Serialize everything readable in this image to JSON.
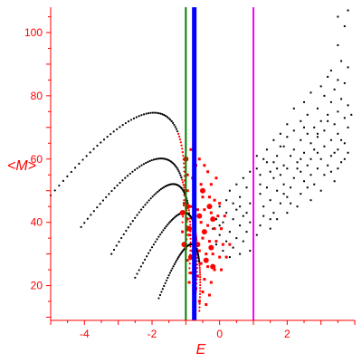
{
  "chart_data": {
    "type": "scatter",
    "title": "",
    "xlabel": "E",
    "ylabel": "<M>",
    "xlim": [
      -5.0,
      4.0
    ],
    "ylim": [
      9.0,
      108.0
    ],
    "x_ticks": [
      -4,
      -2,
      0,
      2
    ],
    "y_ticks": [
      20,
      40,
      60,
      80,
      100
    ],
    "grid": false,
    "legend": "none",
    "colors": {
      "axes": "#ff0000",
      "dotted_curves": "#000000",
      "black_points": "#000000",
      "red_points": "#ff0000",
      "green_line": "#008000",
      "blue_line": "#0000ff",
      "magenta_line": "#ff00ff"
    },
    "vertical_lines": [
      {
        "x": -1.0,
        "color": "green",
        "weight": "thin"
      },
      {
        "x": -0.75,
        "color": "blue",
        "weight": "thick"
      },
      {
        "x": 1.0,
        "color": "magenta",
        "weight": "thin"
      }
    ],
    "dotted_curves": [
      {
        "start": [
          -5.0,
          48.5
        ],
        "peak": [
          -1.8,
          74.5
        ],
        "end": [
          -1.1,
          40.0
        ]
      },
      {
        "start": [
          -4.1,
          38.5
        ],
        "peak": [
          -1.6,
          60.0
        ],
        "end": [
          -1.0,
          30.0
        ]
      },
      {
        "start": [
          -3.2,
          30.0
        ],
        "peak": [
          -1.3,
          52.0
        ],
        "end": [
          -0.9,
          24.0
        ]
      },
      {
        "start": [
          -2.5,
          22.5
        ],
        "peak": [
          -1.0,
          43.0
        ],
        "end": [
          -0.7,
          18.0
        ]
      },
      {
        "start": [
          -1.8,
          16.0
        ],
        "peak": [
          -0.8,
          33.0
        ],
        "end": [
          -0.6,
          12.0
        ]
      }
    ],
    "red_points": [
      [
        -0.85,
        63
      ],
      [
        -0.6,
        60
      ],
      [
        -0.7,
        58
      ],
      [
        -0.45,
        58
      ],
      [
        -0.35,
        56
      ],
      [
        -0.95,
        55
      ],
      [
        -0.8,
        54
      ],
      [
        -0.55,
        52
      ],
      [
        -0.25,
        52
      ],
      [
        -0.1,
        54
      ],
      [
        -0.95,
        50
      ],
      [
        -0.75,
        49
      ],
      [
        -0.5,
        48
      ],
      [
        -0.3,
        48
      ],
      [
        -0.15,
        47
      ],
      [
        0.0,
        46
      ],
      [
        -1.05,
        46
      ],
      [
        -0.85,
        45
      ],
      [
        -0.65,
        44
      ],
      [
        -0.45,
        44
      ],
      [
        -0.25,
        43
      ],
      [
        -0.05,
        42
      ],
      [
        0.15,
        42
      ],
      [
        -0.95,
        41
      ],
      [
        -0.75,
        40
      ],
      [
        -0.55,
        40
      ],
      [
        -0.35,
        39
      ],
      [
        -0.15,
        38
      ],
      [
        0.05,
        38
      ],
      [
        -1.1,
        37
      ],
      [
        -0.9,
        36
      ],
      [
        -0.7,
        35
      ],
      [
        -0.5,
        35
      ],
      [
        -0.3,
        34
      ],
      [
        -0.1,
        34
      ],
      [
        0.1,
        33
      ],
      [
        0.3,
        33
      ],
      [
        -1.0,
        32
      ],
      [
        -0.8,
        31
      ],
      [
        -0.6,
        31
      ],
      [
        -0.4,
        30
      ],
      [
        -0.2,
        30
      ],
      [
        0.0,
        29
      ],
      [
        0.2,
        29
      ],
      [
        -0.95,
        28
      ],
      [
        -0.75,
        27
      ],
      [
        -0.55,
        27
      ],
      [
        -0.35,
        26
      ],
      [
        -0.15,
        25
      ],
      [
        0.05,
        25
      ],
      [
        -0.85,
        24
      ],
      [
        -0.65,
        23
      ],
      [
        -0.45,
        22
      ],
      [
        -0.25,
        21
      ],
      [
        -0.7,
        19
      ],
      [
        -0.5,
        18
      ],
      [
        -0.3,
        17
      ],
      [
        -0.9,
        21
      ],
      [
        -0.6,
        15
      ],
      [
        -0.4,
        14
      ]
    ],
    "red_points_large": [
      [
        -1.0,
        60
      ],
      [
        -0.5,
        50
      ],
      [
        -0.95,
        45
      ],
      [
        -0.3,
        45
      ],
      [
        -1.1,
        43
      ],
      [
        -0.6,
        42
      ],
      [
        -0.2,
        41
      ],
      [
        -0.9,
        38
      ],
      [
        -0.45,
        37
      ],
      [
        -1.05,
        33
      ],
      [
        -0.65,
        33
      ],
      [
        -0.25,
        32
      ],
      [
        -0.85,
        29
      ],
      [
        -0.4,
        28
      ],
      [
        -0.2,
        26
      ]
    ],
    "black_points": [
      [
        3.8,
        107
      ],
      [
        3.5,
        105
      ],
      [
        3.7,
        102
      ],
      [
        3.5,
        96
      ],
      [
        3.6,
        91
      ],
      [
        3.8,
        89
      ],
      [
        3.3,
        88
      ],
      [
        3.2,
        86
      ],
      [
        3.5,
        85
      ],
      [
        3.7,
        84
      ],
      [
        3.0,
        83
      ],
      [
        3.4,
        82
      ],
      [
        2.7,
        81
      ],
      [
        3.1,
        80
      ],
      [
        3.6,
        79
      ],
      [
        2.5,
        78
      ],
      [
        3.3,
        78
      ],
      [
        3.8,
        77
      ],
      [
        2.9,
        76
      ],
      [
        2.2,
        76
      ],
      [
        3.5,
        75
      ],
      [
        2.6,
        74
      ],
      [
        3.2,
        74
      ],
      [
        3.7,
        73
      ],
      [
        2.4,
        72
      ],
      [
        3.0,
        72
      ],
      [
        2.0,
        71
      ],
      [
        3.4,
        71
      ],
      [
        2.8,
        70
      ],
      [
        3.8,
        70
      ],
      [
        2.2,
        69
      ],
      [
        3.1,
        69
      ],
      [
        1.8,
        68
      ],
      [
        2.6,
        68
      ],
      [
        3.5,
        68
      ],
      [
        2.0,
        67
      ],
      [
        2.9,
        67
      ],
      [
        3.3,
        66
      ],
      [
        1.6,
        66
      ],
      [
        2.4,
        66
      ],
      [
        3.7,
        65
      ],
      [
        2.7,
        65
      ],
      [
        1.9,
        64
      ],
      [
        3.1,
        64
      ],
      [
        2.2,
        63
      ],
      [
        3.5,
        63
      ],
      [
        1.4,
        63
      ],
      [
        2.5,
        62
      ],
      [
        2.9,
        62
      ],
      [
        3.8,
        62
      ],
      [
        1.7,
        61
      ],
      [
        2.1,
        61
      ],
      [
        3.3,
        61
      ],
      [
        2.7,
        60
      ],
      [
        1.3,
        60
      ],
      [
        3.0,
        60
      ],
      [
        2.3,
        59
      ],
      [
        3.6,
        59
      ],
      [
        1.6,
        59
      ],
      [
        1.9,
        58
      ],
      [
        2.6,
        58
      ],
      [
        3.2,
        58
      ],
      [
        1.1,
        57
      ],
      [
        2.0,
        57
      ],
      [
        2.9,
        57
      ],
      [
        3.5,
        57
      ],
      [
        1.5,
        56
      ],
      [
        2.4,
        56
      ],
      [
        0.9,
        56
      ],
      [
        1.8,
        55
      ],
      [
        2.7,
        55
      ],
      [
        3.1,
        55
      ],
      [
        1.2,
        55
      ],
      [
        2.2,
        54
      ],
      [
        0.7,
        54
      ],
      [
        1.6,
        54
      ],
      [
        2.5,
        53
      ],
      [
        3.4,
        53
      ],
      [
        1.0,
        53
      ],
      [
        1.9,
        52
      ],
      [
        0.5,
        52
      ],
      [
        2.8,
        52
      ],
      [
        1.4,
        51
      ],
      [
        2.1,
        51
      ],
      [
        0.8,
        51
      ],
      [
        3.0,
        50
      ],
      [
        1.7,
        50
      ],
      [
        0.3,
        50
      ],
      [
        2.4,
        49
      ],
      [
        1.2,
        49
      ],
      [
        0.6,
        48
      ],
      [
        2.0,
        48
      ],
      [
        1.5,
        47
      ],
      [
        0.2,
        47
      ],
      [
        2.7,
        47
      ],
      [
        0.9,
        46
      ],
      [
        1.8,
        46
      ],
      [
        0.0,
        45
      ],
      [
        1.3,
        45
      ],
      [
        2.3,
        45
      ],
      [
        0.5,
        44
      ],
      [
        1.0,
        44
      ],
      [
        1.6,
        43
      ],
      [
        0.2,
        43
      ],
      [
        2.0,
        43
      ],
      [
        0.7,
        42
      ],
      [
        1.3,
        42
      ],
      [
        -0.1,
        41
      ],
      [
        0.4,
        41
      ],
      [
        1.7,
        41
      ],
      [
        0.9,
        40
      ],
      [
        0.1,
        40
      ],
      [
        1.2,
        39
      ],
      [
        0.6,
        39
      ],
      [
        -0.2,
        38
      ],
      [
        1.5,
        38
      ],
      [
        0.3,
        37
      ],
      [
        0.8,
        37
      ],
      [
        0.0,
        36
      ],
      [
        1.1,
        36
      ],
      [
        0.5,
        35
      ],
      [
        0.2,
        34
      ],
      [
        0.7,
        34
      ],
      [
        -0.1,
        33
      ],
      [
        0.4,
        32
      ],
      [
        0.9,
        31
      ],
      [
        0.1,
        31
      ],
      [
        0.6,
        30
      ],
      [
        0.3,
        29
      ],
      [
        1.4,
        59
      ],
      [
        1.1,
        61
      ],
      [
        1.8,
        64
      ],
      [
        2.5,
        70
      ],
      [
        3.2,
        72
      ],
      [
        3.9,
        74
      ],
      [
        3.6,
        66
      ],
      [
        2.3,
        57
      ],
      [
        1.0,
        47
      ],
      [
        2.6,
        51
      ],
      [
        3.3,
        56
      ],
      [
        1.5,
        41
      ],
      [
        0.4,
        46
      ],
      [
        2.1,
        46
      ],
      [
        3.7,
        60
      ],
      [
        2.8,
        63
      ],
      [
        1.2,
        52
      ],
      [
        0.8,
        43
      ],
      [
        1.9,
        49
      ],
      [
        3.4,
        62
      ],
      [
        2.9,
        68
      ],
      [
        0.0,
        39
      ],
      [
        0.6,
        45
      ],
      [
        1.7,
        57
      ],
      [
        2.4,
        60
      ]
    ]
  }
}
